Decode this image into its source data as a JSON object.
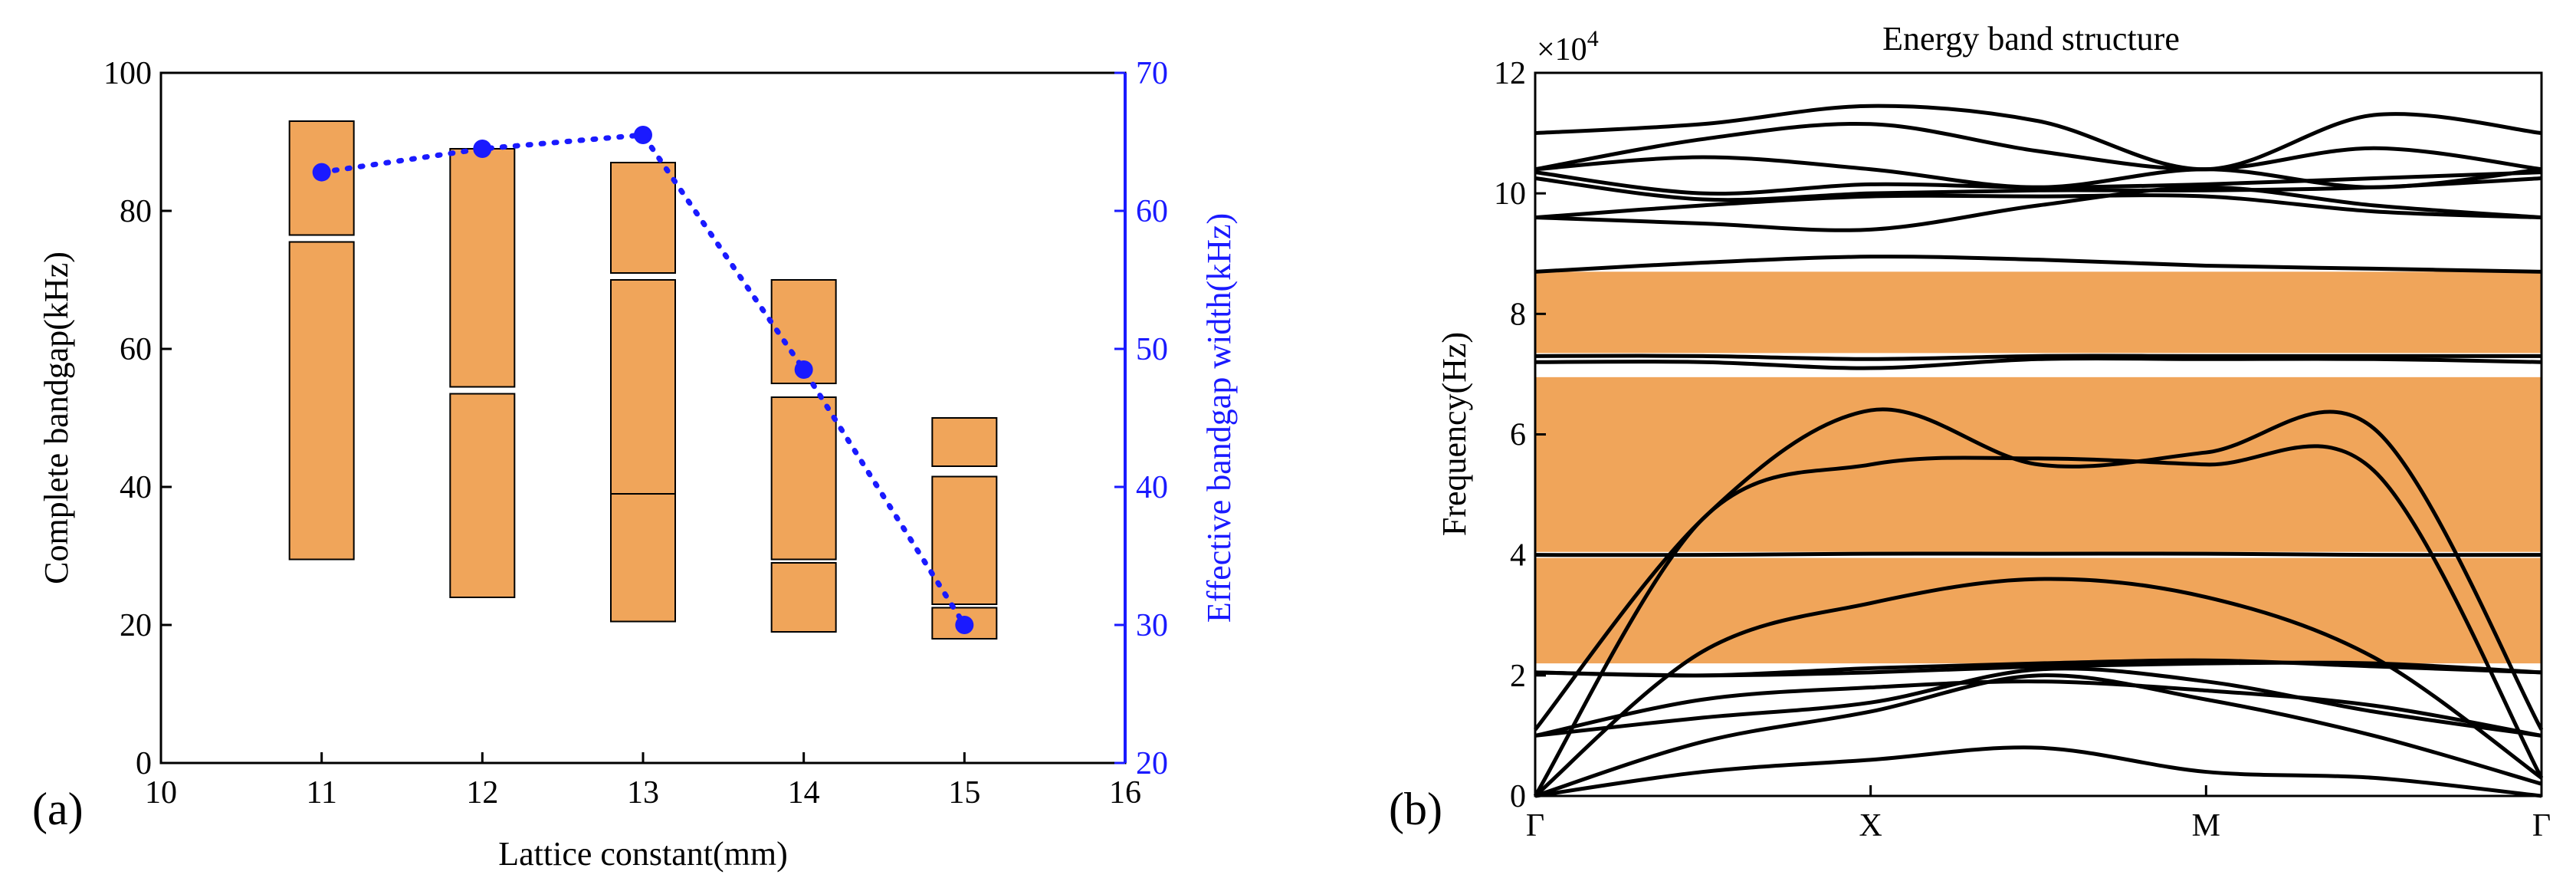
{
  "chart_data": [
    {
      "panel": "(a)",
      "type": "bar",
      "subtype": "floating-range-bars-with-secondary-line",
      "title": "",
      "xlabel": "Lattice constant(mm)",
      "ylabel": "Complete bandgap(kHz)",
      "y2label": "Effective bandgap width(kHz)",
      "xlim": [
        10,
        16
      ],
      "ylim": [
        0,
        100
      ],
      "y2lim": [
        20,
        70
      ],
      "xticks": [
        "10",
        "11",
        "12",
        "13",
        "14",
        "15",
        "16"
      ],
      "yticks": [
        "0",
        "20",
        "40",
        "60",
        "80",
        "100"
      ],
      "y2ticks": [
        "20",
        "30",
        "40",
        "50",
        "60",
        "70"
      ],
      "ranges": [
        {
          "x": 11,
          "low": 29.5,
          "high": 75.5
        },
        {
          "x": 11,
          "low": 76.5,
          "high": 93
        },
        {
          "x": 12,
          "low": 24,
          "high": 53.5
        },
        {
          "x": 12,
          "low": 54.5,
          "high": 89
        },
        {
          "x": 13,
          "low": 20.5,
          "high": 39
        },
        {
          "x": 13,
          "low": 39,
          "high": 70
        },
        {
          "x": 13,
          "low": 71,
          "high": 87
        },
        {
          "x": 14,
          "low": 19,
          "high": 29
        },
        {
          "x": 14,
          "low": 29.5,
          "high": 53
        },
        {
          "x": 14,
          "low": 55,
          "high": 70
        },
        {
          "x": 15,
          "low": 18,
          "high": 22.5
        },
        {
          "x": 15,
          "low": 23,
          "high": 41.5
        },
        {
          "x": 15,
          "low": 43,
          "high": 50
        }
      ],
      "series": [
        {
          "name": "Effective bandgap width",
          "axis": "right",
          "x": [
            11,
            12,
            13,
            14,
            15
          ],
          "values": [
            62.8,
            64.5,
            65.5,
            48.5,
            30
          ]
        }
      ],
      "colors": {
        "bar_fill": "#f0a55a",
        "bar_edge": "#000000",
        "line": "#1a1aff",
        "right_axis": "#1a1aff"
      }
    },
    {
      "panel": "(b)",
      "type": "line",
      "subtype": "band-structure",
      "title": "Energy band structure",
      "xlabel": "",
      "ylabel": "Frequency(Hz)",
      "y_multiplier": "×10",
      "y_multiplier_exp": "4",
      "ylim": [
        0,
        12
      ],
      "yticks": [
        "0",
        "2",
        "4",
        "6",
        "8",
        "10",
        "12"
      ],
      "x_points": [
        "Γ",
        "X",
        "M",
        "Γ"
      ],
      "bandgaps": [
        {
          "low": 2.2,
          "high": 3.95
        },
        {
          "low": 4.05,
          "high": 6.95
        },
        {
          "low": 7.35,
          "high": 8.7
        }
      ],
      "bands": [
        [
          0,
          0.4,
          0.6,
          0.8,
          0.4,
          0.3,
          0
        ],
        [
          0,
          0.9,
          1.4,
          2.0,
          1.6,
          1.0,
          0.2
        ],
        [
          0,
          2.4,
          3.2,
          3.6,
          3.3,
          2.3,
          0.3
        ],
        [
          0,
          4.6,
          5.5,
          5.6,
          5.5,
          5.4,
          0.3
        ],
        [
          1.1,
          4.6,
          6.4,
          5.5,
          5.7,
          6.1,
          1.1
        ],
        [
          1.0,
          1.3,
          1.55,
          2.1,
          1.9,
          1.4,
          1.0
        ],
        [
          1.0,
          1.6,
          1.8,
          1.9,
          1.75,
          1.5,
          1.0
        ],
        [
          2.05,
          2.0,
          2.05,
          2.15,
          2.2,
          2.2,
          2.05
        ],
        [
          2.05,
          2.0,
          2.12,
          2.2,
          2.25,
          2.15,
          2.05
        ],
        [
          4.0,
          4.0,
          4.02,
          4.02,
          4.02,
          4.0,
          4.0
        ],
        [
          7.2,
          7.2,
          7.1,
          7.25,
          7.25,
          7.25,
          7.2
        ],
        [
          7.3,
          7.3,
          7.25,
          7.3,
          7.3,
          7.3,
          7.3
        ],
        [
          8.7,
          8.85,
          8.95,
          8.9,
          8.8,
          8.75,
          8.7
        ],
        [
          9.6,
          9.5,
          9.4,
          9.8,
          10.1,
          9.8,
          9.6
        ],
        [
          9.6,
          9.8,
          9.95,
          9.95,
          9.95,
          9.7,
          9.6
        ],
        [
          10.25,
          9.9,
          10.0,
          10.05,
          10.05,
          10.1,
          10.25
        ],
        [
          10.35,
          10.0,
          10.15,
          10.1,
          10.15,
          10.25,
          10.35
        ],
        [
          10.4,
          10.6,
          10.4,
          10.1,
          10.4,
          10.1,
          10.4
        ],
        [
          10.4,
          10.9,
          11.15,
          10.7,
          10.4,
          10.75,
          10.4
        ],
        [
          11.0,
          11.15,
          11.45,
          11.2,
          10.4,
          11.3,
          11.0
        ]
      ],
      "colors": {
        "band_line": "#000000",
        "gap_fill": "#f0a55a"
      }
    }
  ]
}
